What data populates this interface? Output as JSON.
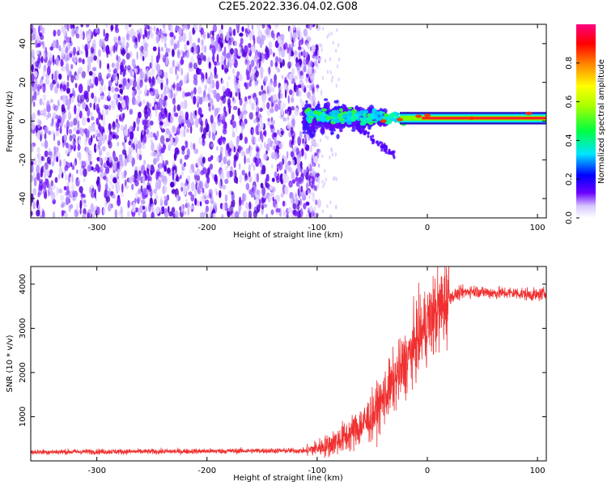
{
  "title": "C2E5.2022.336.04.02.G08",
  "chart_data": [
    {
      "type": "heatmap",
      "xlabel": "Height of straight line (km)",
      "ylabel": "Frequency (Hz)",
      "xlim": [
        -360,
        108
      ],
      "ylim": [
        -50,
        50
      ],
      "xticks": [
        -300,
        -200,
        -100,
        0,
        100
      ],
      "yticks": [
        -40,
        -20,
        0,
        20,
        40
      ],
      "colorbar": {
        "label": "Normalized spectral amplitude",
        "range": [
          0.0,
          1.0
        ],
        "ticks": [
          "0.0",
          "0.2",
          "0.4",
          "0.6",
          "0.8"
        ],
        "colors": [
          "#ffffff",
          "#6a00ff",
          "#0000ff",
          "#00e5ff",
          "#00ff00",
          "#ffff00",
          "#ff8000",
          "#ff0000",
          "#ff0080"
        ]
      },
      "features": {
        "noise_region_x": [
          -360,
          -110
        ],
        "noise_color": "#6a00ff",
        "carrier_line_y": 1.5,
        "carrier_start_x": -110
      }
    },
    {
      "type": "line",
      "xlabel": "Height of straight line (km)",
      "ylabel": "SNR (10 * v/v)",
      "xlim": [
        -360,
        108
      ],
      "ylim": [
        0,
        4400
      ],
      "xticks": [
        -300,
        -200,
        -100,
        0,
        100
      ],
      "yticks": [
        1000,
        2000,
        3000,
        4000
      ],
      "color": "#f03030",
      "x": [
        -360,
        -300,
        -250,
        -200,
        -150,
        -110,
        -90,
        -70,
        -50,
        -40,
        -30,
        -20,
        -10,
        0,
        10,
        20,
        30,
        40,
        60,
        80,
        100,
        108
      ],
      "values": [
        200,
        210,
        210,
        220,
        230,
        230,
        350,
        600,
        1000,
        1400,
        1800,
        2200,
        2700,
        3100,
        3400,
        3700,
        3800,
        3850,
        3800,
        3800,
        3750,
        3800
      ]
    }
  ]
}
